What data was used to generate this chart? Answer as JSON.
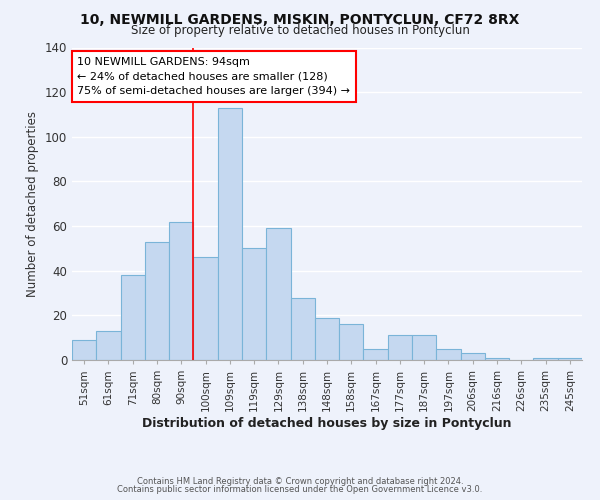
{
  "title": "10, NEWMILL GARDENS, MISKIN, PONTYCLUN, CF72 8RX",
  "subtitle": "Size of property relative to detached houses in Pontyclun",
  "xlabel": "Distribution of detached houses by size in Pontyclun",
  "ylabel": "Number of detached properties",
  "bar_labels": [
    "51sqm",
    "61sqm",
    "71sqm",
    "80sqm",
    "90sqm",
    "100sqm",
    "109sqm",
    "119sqm",
    "129sqm",
    "138sqm",
    "148sqm",
    "158sqm",
    "167sqm",
    "177sqm",
    "187sqm",
    "197sqm",
    "206sqm",
    "216sqm",
    "226sqm",
    "235sqm",
    "245sqm"
  ],
  "bar_values": [
    9,
    13,
    38,
    53,
    62,
    46,
    113,
    50,
    59,
    28,
    19,
    16,
    5,
    11,
    11,
    5,
    3,
    1,
    0,
    1,
    1
  ],
  "bar_color": "#c5d8f0",
  "bar_edgecolor": "#7ab4d8",
  "vline_x": 4.5,
  "vline_color": "red",
  "annotation_title": "10 NEWMILL GARDENS: 94sqm",
  "annotation_line1": "← 24% of detached houses are smaller (128)",
  "annotation_line2": "75% of semi-detached houses are larger (394) →",
  "annotation_box_facecolor": "white",
  "annotation_box_edgecolor": "red",
  "ylim": [
    0,
    140
  ],
  "yticks": [
    0,
    20,
    40,
    60,
    80,
    100,
    120,
    140
  ],
  "footer1": "Contains HM Land Registry data © Crown copyright and database right 2024.",
  "footer2": "Contains public sector information licensed under the Open Government Licence v3.0.",
  "bg_color": "#eef2fb",
  "grid_color": "#ffffff"
}
